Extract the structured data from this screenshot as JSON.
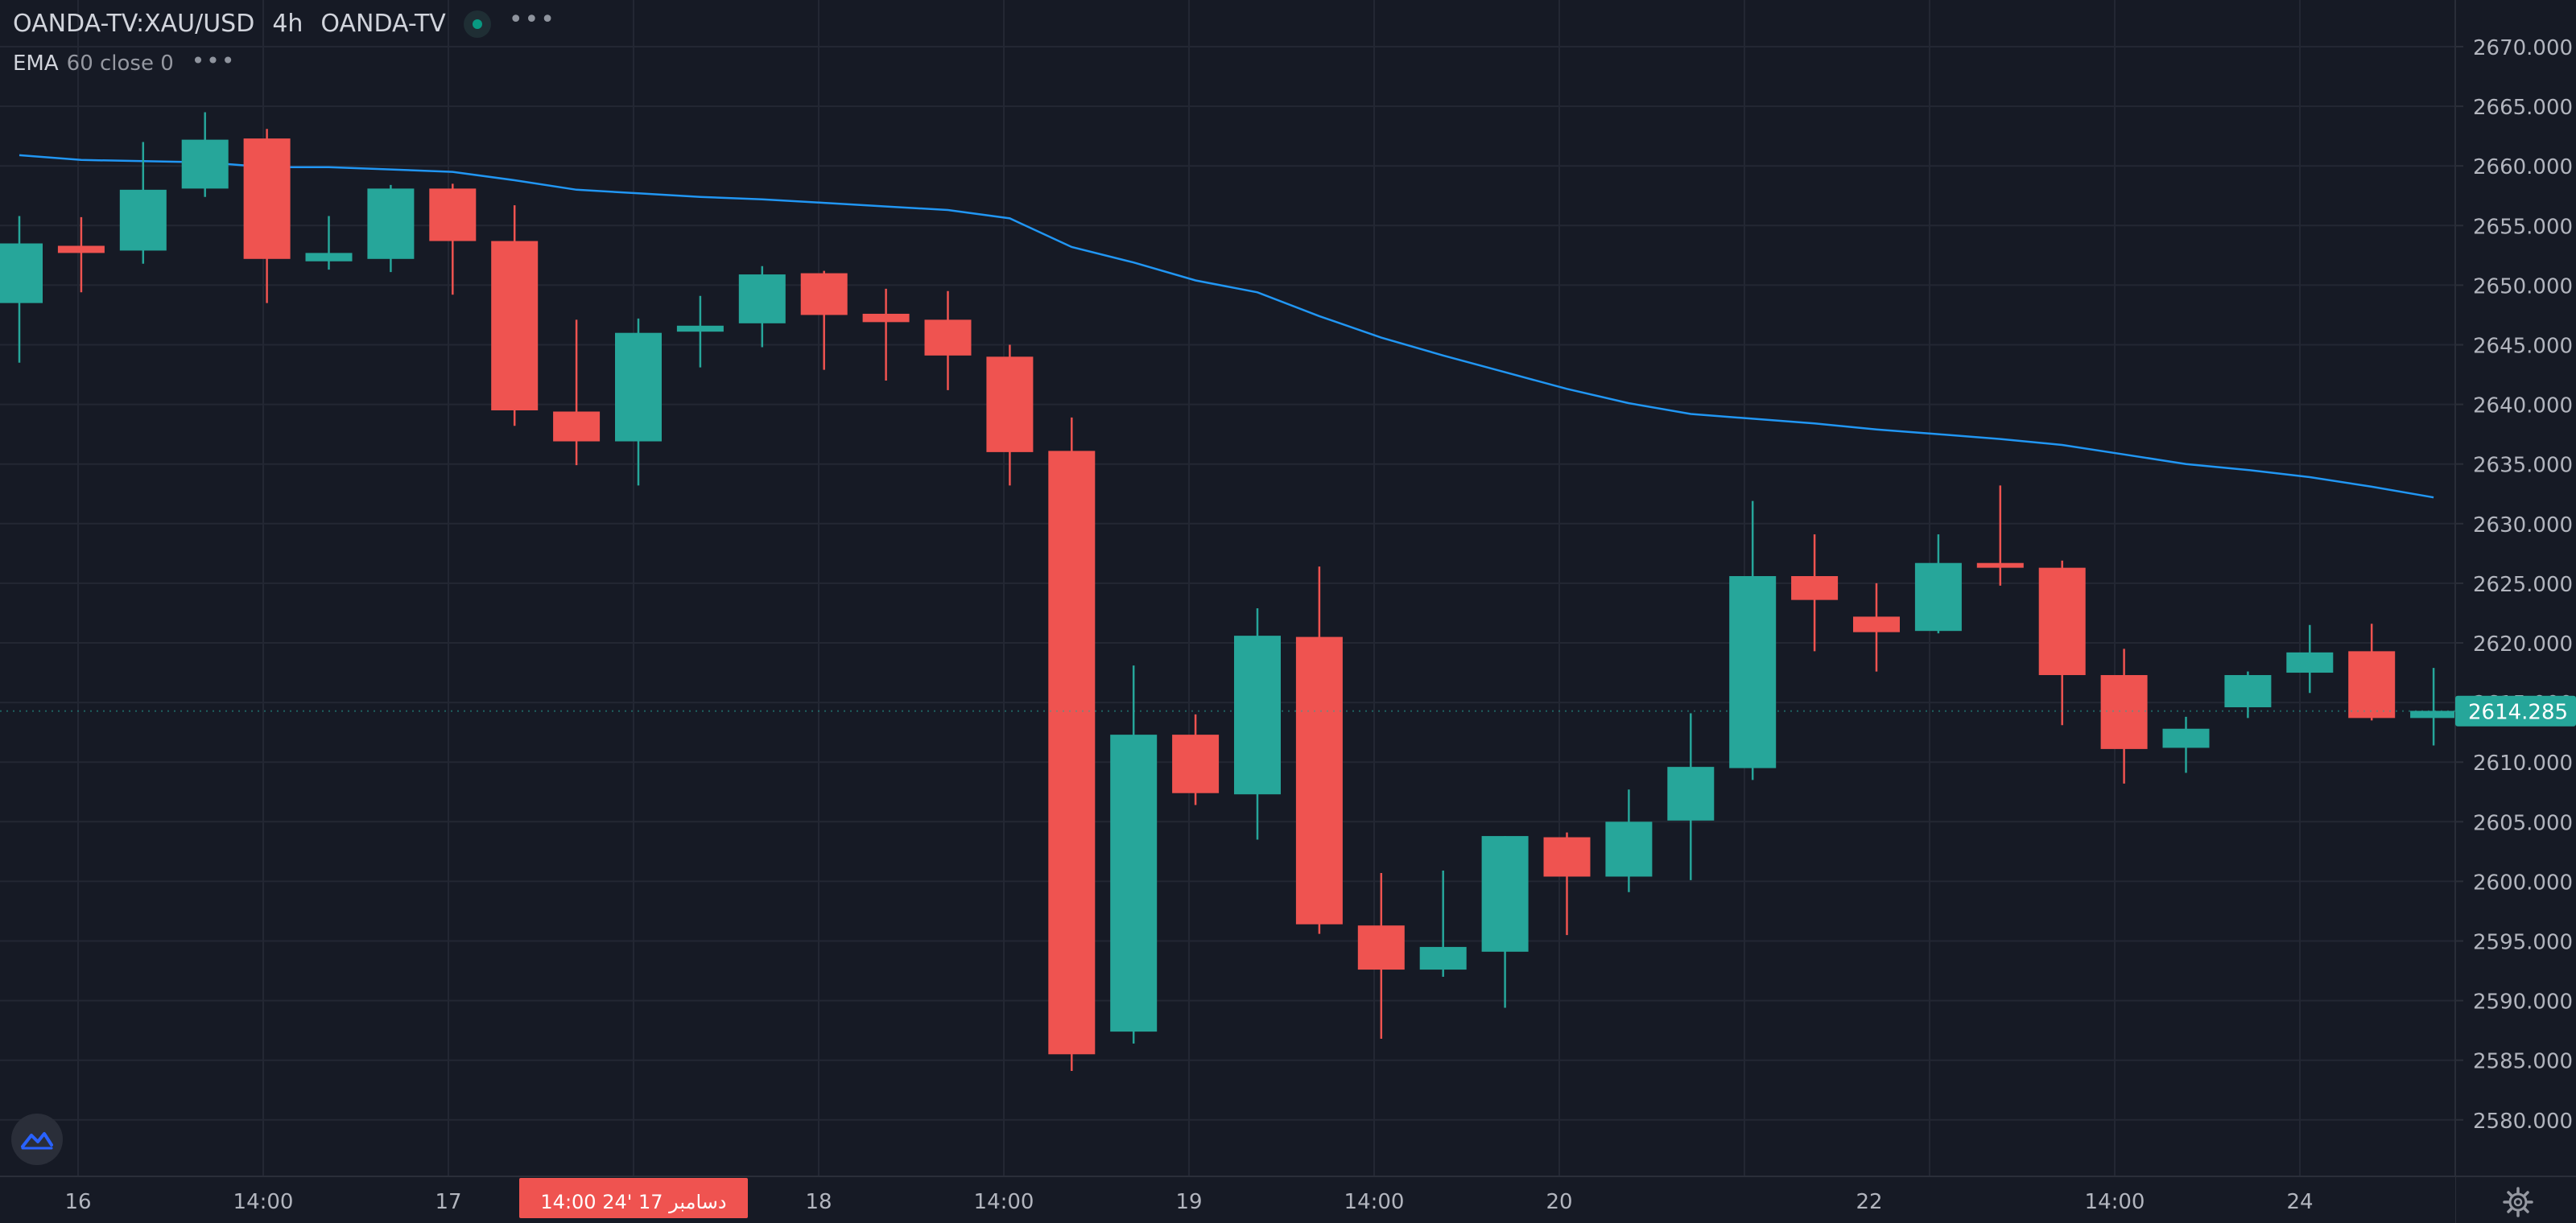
{
  "header": {
    "symbol": "OANDA-TV:XAU/USD",
    "interval": "4h",
    "exchange": "OANDA-TV",
    "more_icon": "more-horizontal-icon",
    "status_icon": "live-status-dot-icon"
  },
  "indicator": {
    "name": "EMA",
    "params": "60 close 0",
    "more_icon": "more-horizontal-icon"
  },
  "colors": {
    "background": "#161a25",
    "grid": "#232733",
    "up": "#26a69a",
    "down": "#ef5350",
    "ema": "#2196f3",
    "axis_text": "#b2b5be",
    "price_label_bg": "#26a69a",
    "crosshair_label_bg": "#ef5350"
  },
  "price_axis": {
    "labels": [
      "2670.000",
      "2665.000",
      "2660.000",
      "2655.000",
      "2650.000",
      "2645.000",
      "2640.000",
      "2635.000",
      "2630.000",
      "2625.000",
      "2620.000",
      "2615.000",
      "2610.000",
      "2605.000",
      "2600.000",
      "2595.000",
      "2590.000",
      "2585.000",
      "2580.000"
    ],
    "current_price": "2614.285"
  },
  "time_axis": {
    "labels": [
      "16",
      "14:00",
      "17",
      "18",
      "14:00",
      "19",
      "14:00",
      "20",
      "22",
      "14:00",
      "24"
    ],
    "crosshair_label": "14:00   24' دسامبر 17"
  },
  "icons": {
    "logo": "tradingview-logo-icon",
    "settings": "settings-gear-icon"
  },
  "chart_data": {
    "type": "candlestick",
    "symbol": "XAU/USD",
    "interval": "4h",
    "ylim": [
      2578,
      2672
    ],
    "grid": true,
    "candles": [
      {
        "o": 2648.5,
        "h": 2655.8,
        "l": 2643.5,
        "c": 2653.5
      },
      {
        "o": 2653.3,
        "h": 2655.7,
        "l": 2649.4,
        "c": 2652.7
      },
      {
        "o": 2652.9,
        "h": 2662.0,
        "l": 2651.8,
        "c": 2658.0
      },
      {
        "o": 2658.1,
        "h": 2664.5,
        "l": 2657.4,
        "c": 2662.2
      },
      {
        "o": 2662.3,
        "h": 2663.1,
        "l": 2648.5,
        "c": 2652.2
      },
      {
        "o": 2652.0,
        "h": 2655.8,
        "l": 2651.3,
        "c": 2652.7
      },
      {
        "o": 2652.2,
        "h": 2658.4,
        "l": 2651.1,
        "c": 2658.1
      },
      {
        "o": 2658.1,
        "h": 2658.5,
        "l": 2649.2,
        "c": 2653.7
      },
      {
        "o": 2653.7,
        "h": 2656.7,
        "l": 2638.2,
        "c": 2639.5
      },
      {
        "o": 2639.4,
        "h": 2647.1,
        "l": 2634.9,
        "c": 2636.9
      },
      {
        "o": 2636.9,
        "h": 2647.2,
        "l": 2633.2,
        "c": 2646.0
      },
      {
        "o": 2646.1,
        "h": 2649.1,
        "l": 2643.1,
        "c": 2646.6
      },
      {
        "o": 2646.8,
        "h": 2651.6,
        "l": 2644.8,
        "c": 2650.9
      },
      {
        "o": 2651.0,
        "h": 2651.2,
        "l": 2642.9,
        "c": 2647.5
      },
      {
        "o": 2647.6,
        "h": 2649.7,
        "l": 2642.0,
        "c": 2646.9
      },
      {
        "o": 2647.1,
        "h": 2649.5,
        "l": 2641.2,
        "c": 2644.1
      },
      {
        "o": 2644.0,
        "h": 2645.0,
        "l": 2633.2,
        "c": 2636.0
      },
      {
        "o": 2636.1,
        "h": 2638.9,
        "l": 2584.1,
        "c": 2585.5
      },
      {
        "o": 2587.4,
        "h": 2618.1,
        "l": 2586.4,
        "c": 2612.3
      },
      {
        "o": 2612.3,
        "h": 2614.0,
        "l": 2606.4,
        "c": 2607.4
      },
      {
        "o": 2607.3,
        "h": 2622.9,
        "l": 2603.5,
        "c": 2620.6
      },
      {
        "o": 2620.5,
        "h": 2626.4,
        "l": 2595.6,
        "c": 2596.4
      },
      {
        "o": 2596.3,
        "h": 2600.7,
        "l": 2586.8,
        "c": 2592.6
      },
      {
        "o": 2592.6,
        "h": 2600.9,
        "l": 2592.0,
        "c": 2594.5
      },
      {
        "o": 2594.1,
        "h": 2603.8,
        "l": 2589.4,
        "c": 2603.8
      },
      {
        "o": 2603.7,
        "h": 2604.1,
        "l": 2595.5,
        "c": 2600.4
      },
      {
        "o": 2600.4,
        "h": 2607.7,
        "l": 2599.1,
        "c": 2605.0
      },
      {
        "o": 2605.1,
        "h": 2614.1,
        "l": 2600.1,
        "c": 2609.6
      },
      {
        "o": 2609.5,
        "h": 2631.9,
        "l": 2608.5,
        "c": 2625.6
      },
      {
        "o": 2625.6,
        "h": 2629.1,
        "l": 2619.3,
        "c": 2623.6
      },
      {
        "o": 2622.2,
        "h": 2625.0,
        "l": 2617.6,
        "c": 2620.9
      },
      {
        "o": 2621.0,
        "h": 2629.1,
        "l": 2620.8,
        "c": 2626.7
      },
      {
        "o": 2626.7,
        "h": 2633.2,
        "l": 2624.8,
        "c": 2626.3
      },
      {
        "o": 2626.3,
        "h": 2626.9,
        "l": 2613.1,
        "c": 2617.3
      },
      {
        "o": 2617.3,
        "h": 2619.5,
        "l": 2608.2,
        "c": 2611.1
      },
      {
        "o": 2611.2,
        "h": 2613.8,
        "l": 2609.1,
        "c": 2612.8
      },
      {
        "o": 2614.6,
        "h": 2617.6,
        "l": 2613.7,
        "c": 2617.3
      },
      {
        "o": 2617.5,
        "h": 2621.5,
        "l": 2615.8,
        "c": 2619.2
      },
      {
        "o": 2619.3,
        "h": 2621.6,
        "l": 2613.5,
        "c": 2613.7
      },
      {
        "o": 2613.7,
        "h": 2617.9,
        "l": 2611.4,
        "c": 2614.3
      }
    ],
    "ema": [
      2660.9,
      2660.5,
      2660.4,
      2660.3,
      2659.9,
      2659.9,
      2659.7,
      2659.5,
      2658.8,
      2658.0,
      2657.7,
      2657.4,
      2657.2,
      2656.9,
      2656.6,
      2656.3,
      2655.6,
      2653.2,
      2651.9,
      2650.4,
      2649.4,
      2647.4,
      2645.6,
      2644.1,
      2642.7,
      2641.3,
      2640.1,
      2639.2,
      2638.8,
      2638.4,
      2637.9,
      2637.5,
      2637.1,
      2636.6,
      2635.8,
      2635.0,
      2634.5,
      2633.9,
      2633.1,
      2632.2
    ],
    "ema_label": "EMA 60 close 0"
  }
}
